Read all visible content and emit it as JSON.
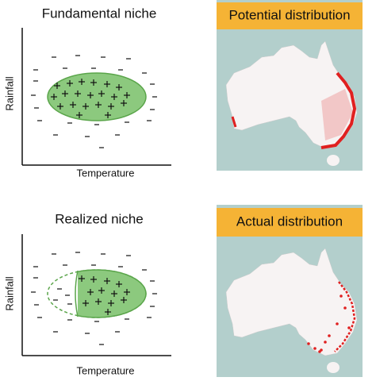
{
  "panels": [
    {
      "title": "Fundamental niche",
      "y_label": "Rainfall",
      "x_label": "Temperature"
    },
    {
      "title": "Potential distribution"
    },
    {
      "title": "Realized niche",
      "y_label": "Rainfall",
      "x_label": "Temperature"
    },
    {
      "title": "Actual distribution"
    }
  ]
}
